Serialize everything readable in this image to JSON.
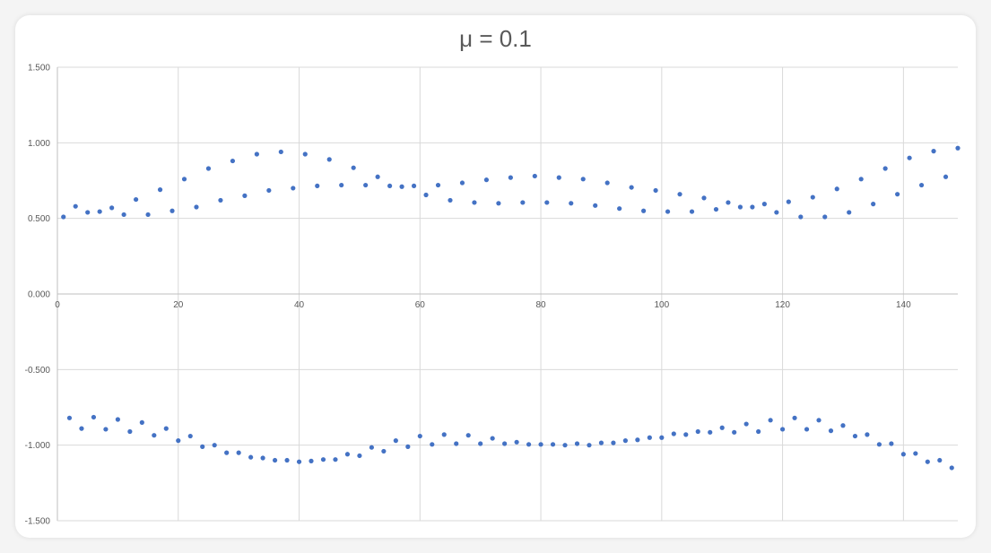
{
  "chart_data": {
    "type": "scatter",
    "title": "μ = 0.1",
    "xlabel": "",
    "ylabel": "",
    "xlim": [
      0,
      149
    ],
    "ylim": [
      -1.5,
      1.5
    ],
    "xticks": [
      0,
      20,
      40,
      60,
      80,
      100,
      120,
      140
    ],
    "xtick_labels": [
      "0",
      "20",
      "40",
      "60",
      "80",
      "100",
      "120",
      "140"
    ],
    "yticks": [
      -1.5,
      -1.0,
      -0.5,
      0.0,
      0.5,
      1.0,
      1.5
    ],
    "ytick_labels": [
      "-1.500",
      "-1.000",
      "-0.500",
      "0.000",
      "0.500",
      "1.000",
      "1.500"
    ],
    "grid": true,
    "marker_color": "#4472C4",
    "series": [
      {
        "x": [
          1,
          3,
          5,
          7,
          9,
          11,
          13,
          15,
          17,
          19,
          21,
          23,
          25,
          27,
          29,
          31,
          33,
          35,
          37,
          39,
          41,
          43,
          45,
          47,
          49,
          51,
          53,
          55,
          57,
          59,
          61,
          63,
          65,
          67,
          69,
          71,
          73,
          75,
          77,
          79,
          81,
          83,
          85,
          87,
          89,
          91,
          93,
          95,
          97,
          99,
          101,
          103,
          105,
          107,
          109,
          111,
          113,
          115,
          117,
          119,
          121,
          123,
          125,
          127,
          129,
          131,
          133,
          135,
          137,
          139,
          141,
          143,
          145,
          147,
          149
        ],
        "y": [
          0.51,
          0.58,
          0.54,
          0.545,
          0.57,
          0.525,
          0.625,
          0.525,
          0.69,
          0.55,
          0.76,
          0.575,
          0.83,
          0.62,
          0.88,
          0.65,
          0.925,
          0.685,
          0.94,
          0.7,
          0.925,
          0.715,
          0.89,
          0.72,
          0.835,
          0.72,
          0.775,
          0.715,
          0.71,
          0.715,
          0.655,
          0.72,
          0.62,
          0.735,
          0.605,
          0.755,
          0.6,
          0.77,
          0.605,
          0.78,
          0.605,
          0.77,
          0.6,
          0.76,
          0.585,
          0.735,
          0.565,
          0.705,
          0.55,
          0.685,
          0.545,
          0.66,
          0.545,
          0.635,
          0.56,
          0.605,
          0.575,
          0.575,
          0.595,
          0.54,
          0.61,
          0.51,
          0.64,
          0.51,
          0.695,
          0.54,
          0.76,
          0.595,
          0.83,
          0.66,
          0.9,
          0.72,
          0.945,
          0.775,
          0.965
        ]
      },
      {
        "x": [
          2,
          4,
          6,
          8,
          10,
          12,
          14,
          16,
          18,
          20,
          22,
          24,
          26,
          28,
          30,
          32,
          34,
          36,
          38,
          40,
          42,
          44,
          46,
          48,
          50,
          52,
          54,
          56,
          58,
          60,
          62,
          64,
          66,
          68,
          70,
          72,
          74,
          76,
          78,
          80,
          82,
          84,
          86,
          88,
          90,
          92,
          94,
          96,
          98,
          100,
          102,
          104,
          106,
          108,
          110,
          112,
          114,
          116,
          118,
          120,
          122,
          124,
          126,
          128,
          130,
          132,
          134,
          136,
          138,
          140,
          142,
          144,
          146,
          148
        ],
        "y": [
          -0.82,
          -0.89,
          -0.815,
          -0.895,
          -0.83,
          -0.91,
          -0.85,
          -0.935,
          -0.89,
          -0.97,
          -0.94,
          -1.01,
          -1.0,
          -1.05,
          -1.05,
          -1.08,
          -1.085,
          -1.1,
          -1.1,
          -1.11,
          -1.105,
          -1.095,
          -1.095,
          -1.06,
          -1.07,
          -1.015,
          -1.04,
          -0.97,
          -1.01,
          -0.94,
          -0.995,
          -0.93,
          -0.99,
          -0.935,
          -0.99,
          -0.955,
          -0.99,
          -0.98,
          -0.995,
          -0.995,
          -0.995,
          -1.0,
          -0.99,
          -1.0,
          -0.985,
          -0.985,
          -0.97,
          -0.965,
          -0.95,
          -0.95,
          -0.925,
          -0.93,
          -0.91,
          -0.915,
          -0.885,
          -0.915,
          -0.86,
          -0.91,
          -0.835,
          -0.895,
          -0.82,
          -0.895,
          -0.835,
          -0.905,
          -0.87,
          -0.94,
          -0.93,
          -0.995,
          -0.99,
          -1.06,
          -1.055,
          -1.11,
          -1.1,
          -1.15
        ]
      }
    ]
  }
}
